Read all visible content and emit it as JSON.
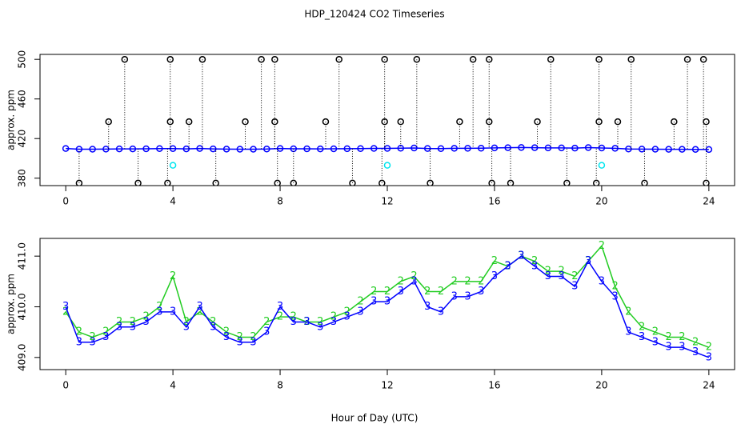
{
  "chart_data": [
    {
      "type": "scatter",
      "title": "HDP_120424  CO2 Timeseries",
      "ylabel": "approx. ppm",
      "xlim": [
        -0.96,
        24.96
      ],
      "ylim": [
        372.5,
        505
      ],
      "xticks": [
        0,
        4,
        8,
        12,
        16,
        20,
        24
      ],
      "yticks": [
        380,
        420,
        460,
        500
      ],
      "series": [
        {
          "color": "#0000ff",
          "marker": "circle",
          "line": true,
          "x": [
            0,
            0.5,
            1,
            1.5,
            2,
            2.5,
            3,
            3.5,
            4,
            4.5,
            5,
            5.5,
            6,
            6.5,
            7,
            7.5,
            8,
            8.5,
            9,
            9.5,
            10,
            10.5,
            11,
            11.5,
            12,
            12.5,
            13,
            13.5,
            14,
            14.5,
            15,
            15.5,
            16,
            16.5,
            17,
            17.5,
            18,
            18.5,
            19,
            19.5,
            20,
            20.5,
            21,
            21.5,
            22,
            22.5,
            23,
            23.5,
            24
          ],
          "values": [
            410.0,
            409.3,
            409.3,
            409.4,
            409.6,
            409.6,
            409.7,
            409.9,
            409.9,
            409.6,
            410.0,
            409.6,
            409.4,
            409.3,
            409.3,
            409.5,
            410.0,
            409.7,
            409.7,
            409.6,
            409.7,
            409.8,
            409.9,
            410.1,
            410.1,
            410.3,
            410.5,
            410.0,
            409.9,
            410.2,
            410.2,
            410.3,
            410.6,
            410.8,
            411.0,
            410.8,
            410.6,
            410.6,
            410.4,
            410.9,
            410.5,
            410.2,
            409.5,
            409.4,
            409.3,
            409.2,
            409.2,
            409.1,
            409.0
          ]
        },
        {
          "color": "#000000",
          "marker": "circle",
          "drop_lines": true,
          "x": [
            2.2,
            3.9,
            5.1,
            7.3,
            7.8,
            10.2,
            11.9,
            13.1,
            15.2,
            15.8,
            18.1,
            19.9,
            21.1,
            23.2,
            23.8,
            0.5,
            2.7,
            3.8,
            5.6,
            7.9,
            8.5,
            10.7,
            11.8,
            13.6,
            15.9,
            16.6,
            18.7,
            19.8,
            21.6,
            23.9,
            1.6,
            3.9,
            4.6,
            6.7,
            7.8,
            9.7,
            11.9,
            12.5,
            14.7,
            15.8,
            17.6,
            19.9,
            20.6,
            22.7,
            23.9
          ],
          "values": [
            500,
            500,
            500,
            500,
            500,
            500,
            500,
            500,
            500,
            500,
            500,
            500,
            500,
            500,
            500,
            375,
            375,
            375,
            375,
            375,
            375,
            375,
            375,
            375,
            375,
            375,
            375,
            375,
            375,
            375,
            437,
            437,
            437,
            437,
            437,
            437,
            437,
            437,
            437,
            437,
            437,
            437,
            437,
            437,
            437
          ]
        },
        {
          "color": "#00e5ee",
          "marker": "circle",
          "x": [
            4,
            12,
            20
          ],
          "values": [
            393,
            393,
            393
          ]
        }
      ]
    },
    {
      "type": "line",
      "ylabel": "approx. ppm",
      "xlabel": "Hour of Day (UTC)",
      "xlim": [
        -0.96,
        24.96
      ],
      "ylim": [
        408.76,
        411.35
      ],
      "xticks": [
        0,
        4,
        8,
        12,
        16,
        20,
        24
      ],
      "yticks": [
        {
          "value": 409,
          "label": "409.0"
        },
        {
          "value": 410,
          "label": "410.0"
        },
        {
          "value": 411,
          "label": "411.0"
        }
      ],
      "series": [
        {
          "color": "#22cc22",
          "marker": "2",
          "line": true,
          "x": [
            0,
            0.5,
            1,
            1.5,
            2,
            2.5,
            3,
            3.5,
            4,
            4.5,
            5,
            5.5,
            6,
            6.5,
            7,
            7.5,
            8,
            8.5,
            9,
            9.5,
            10,
            10.5,
            11,
            11.5,
            12,
            12.5,
            13,
            13.5,
            14,
            14.5,
            15,
            15.5,
            16,
            16.5,
            17,
            17.5,
            18,
            18.5,
            19,
            19.5,
            20,
            20.5,
            21,
            21.5,
            22,
            22.5,
            23,
            23.5,
            24
          ],
          "values": [
            409.9,
            409.5,
            409.4,
            409.5,
            409.7,
            409.7,
            409.8,
            410.0,
            410.6,
            409.7,
            409.9,
            409.7,
            409.5,
            409.4,
            409.4,
            409.7,
            409.8,
            409.8,
            409.7,
            409.7,
            409.8,
            409.9,
            410.1,
            410.3,
            410.3,
            410.5,
            410.6,
            410.3,
            410.3,
            410.5,
            410.5,
            410.5,
            410.9,
            410.8,
            411.0,
            410.9,
            410.7,
            410.7,
            410.6,
            410.9,
            411.2,
            410.4,
            409.9,
            409.6,
            409.5,
            409.4,
            409.4,
            409.3,
            409.2
          ]
        },
        {
          "color": "#0000ff",
          "marker": "3",
          "line": true,
          "x": [
            0,
            0.5,
            1,
            1.5,
            2,
            2.5,
            3,
            3.5,
            4,
            4.5,
            5,
            5.5,
            6,
            6.5,
            7,
            7.5,
            8,
            8.5,
            9,
            9.5,
            10,
            10.5,
            11,
            11.5,
            12,
            12.5,
            13,
            13.5,
            14,
            14.5,
            15,
            15.5,
            16,
            16.5,
            17,
            17.5,
            18,
            18.5,
            19,
            19.5,
            20,
            20.5,
            21,
            21.5,
            22,
            22.5,
            23,
            23.5,
            24
          ],
          "values": [
            410.0,
            409.3,
            409.3,
            409.4,
            409.6,
            409.6,
            409.7,
            409.9,
            409.9,
            409.6,
            410.0,
            409.6,
            409.4,
            409.3,
            409.3,
            409.5,
            410.0,
            409.7,
            409.7,
            409.6,
            409.7,
            409.8,
            409.9,
            410.1,
            410.1,
            410.3,
            410.5,
            410.0,
            409.9,
            410.2,
            410.2,
            410.3,
            410.6,
            410.8,
            411.0,
            410.8,
            410.6,
            410.6,
            410.4,
            410.9,
            410.5,
            410.2,
            409.5,
            409.4,
            409.3,
            409.2,
            409.2,
            409.1,
            409.0
          ]
        }
      ]
    }
  ]
}
